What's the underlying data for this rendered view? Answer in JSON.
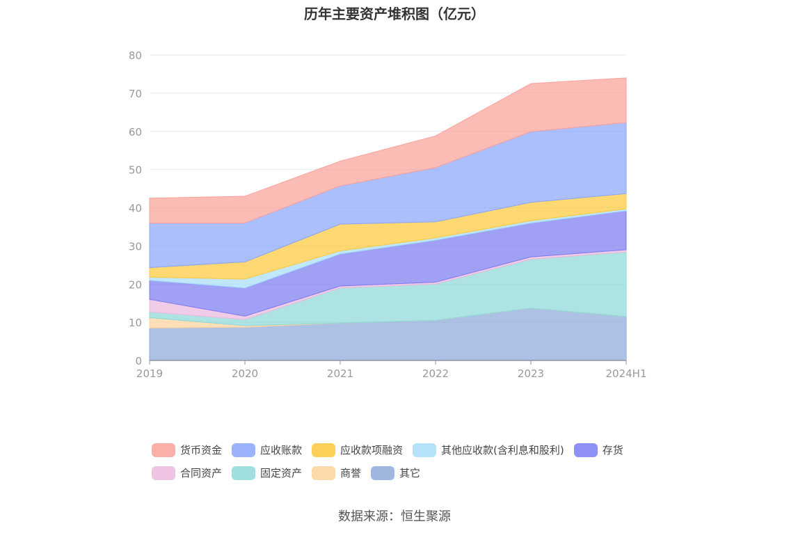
{
  "chart_data": {
    "type": "area",
    "title": "历年主要资产堆积图（亿元）",
    "categories": [
      "2019",
      "2020",
      "2021",
      "2022",
      "2023",
      "2024H1"
    ],
    "ylim": [
      0,
      80
    ],
    "yticks": [
      0,
      10,
      20,
      30,
      40,
      50,
      60,
      70,
      80
    ],
    "grid": true,
    "legend_position": "bottom",
    "series": [
      {
        "name": "其它",
        "color": "#8ea9d9",
        "values": [
          8.5,
          8.7,
          9.8,
          10.5,
          13.7,
          11.5
        ]
      },
      {
        "name": "商誉",
        "color": "#fdd39b",
        "values": [
          2.7,
          0.4,
          0.0,
          0.0,
          0.0,
          0.0
        ]
      },
      {
        "name": "固定资产",
        "color": "#8ed9d8",
        "values": [
          1.5,
          1.6,
          9.2,
          9.5,
          12.8,
          16.9
        ]
      },
      {
        "name": "合同资产",
        "color": "#ecb9dd",
        "values": [
          3.3,
          0.9,
          0.5,
          0.5,
          0.6,
          0.6
        ]
      },
      {
        "name": "存货",
        "color": "#7b7cf1",
        "values": [
          5.0,
          7.4,
          8.4,
          11.0,
          8.9,
          10.2
        ]
      },
      {
        "name": "其他应收款(含利息和股利)",
        "color": "#a7def8",
        "values": [
          0.8,
          2.3,
          0.8,
          0.6,
          0.6,
          0.5
        ]
      },
      {
        "name": "应收款项融资",
        "color": "#fdc93c",
        "values": [
          2.5,
          4.5,
          7.0,
          4.2,
          4.8,
          4.0
        ]
      },
      {
        "name": "应收账款",
        "color": "#89a6fb",
        "values": [
          11.7,
          10.2,
          10.0,
          14.2,
          18.5,
          18.6
        ]
      },
      {
        "name": "货币资金",
        "color": "#f9a29a",
        "values": [
          6.5,
          7.0,
          6.5,
          8.3,
          12.6,
          11.7
        ]
      }
    ],
    "legend_order": [
      "货币资金",
      "应收账款",
      "应收款项融资",
      "其他应收款(含利息和股利)",
      "存货",
      "合同资产",
      "固定资产",
      "商誉",
      "其它"
    ]
  },
  "source": "数据来源：恒生聚源"
}
